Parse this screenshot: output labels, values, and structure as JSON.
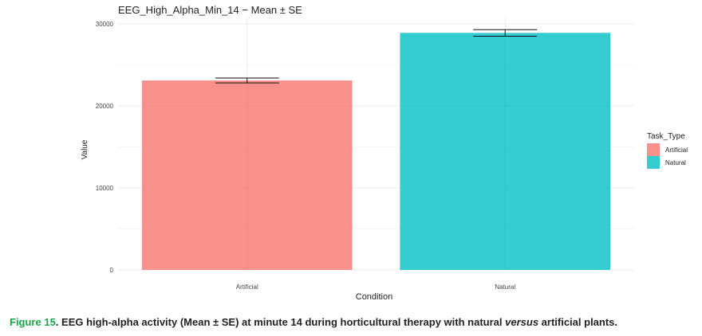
{
  "chart_data": {
    "type": "bar",
    "title": "EEG_High_Alpha_Min_14 − Mean ± SE",
    "xlabel": "Condition",
    "ylabel": "Value",
    "categories": [
      "Artificial",
      "Natural"
    ],
    "values": [
      23100,
      28900
    ],
    "error": [
      300,
      400
    ],
    "colors": [
      "#f8766d",
      "#00bfc4"
    ],
    "ylim": [
      0,
      30000
    ],
    "yticks": [
      0,
      10000,
      20000,
      30000
    ],
    "ytick_labels": [
      "0",
      "10000",
      "20000",
      "30000"
    ],
    "grid": true,
    "legend": {
      "title": "Task_Type",
      "placement": "right",
      "entries": [
        "Artificial",
        "Natural"
      ]
    }
  },
  "caption": {
    "label": "Figure 15",
    "text_before": ". EEG high-alpha activity (Mean ± SE) at minute 14 during horticultural therapy with natural ",
    "emphasis": "versus",
    "text_after": " artificial plants."
  }
}
